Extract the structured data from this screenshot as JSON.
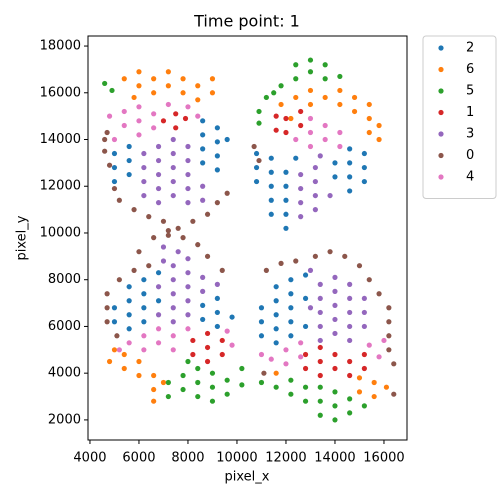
{
  "chart_data": {
    "type": "scatter",
    "title": "Time point: 1",
    "x_label": "pixel_x",
    "y_label": "pixel_y",
    "xlim": [
      3920,
      16940
    ],
    "ylim": [
      1140,
      18430
    ],
    "xticks": [
      4000,
      6000,
      8000,
      10000,
      12000,
      14000,
      16000
    ],
    "yticks": [
      2000,
      4000,
      6000,
      8000,
      10000,
      12000,
      14000,
      16000,
      18000
    ],
    "grid": false,
    "legend": "outside-upper-right",
    "series": [
      {
        "name": "2",
        "color": "#1f77b4",
        "x": [
          5000,
          5000,
          5000,
          5600,
          5600,
          5600,
          8600,
          8600,
          8600,
          8600,
          9200,
          9200,
          9200,
          9200,
          9600,
          10800,
          10800,
          10800,
          11400,
          11400,
          11400,
          11400,
          11400,
          12000,
          12000,
          12000,
          12000,
          12000,
          12400,
          14000,
          14000,
          14600,
          14600,
          14600,
          14600,
          15200,
          15200,
          15200,
          5000,
          5000,
          5600,
          5600,
          5600,
          5600,
          6200,
          6200,
          6200,
          6200,
          6800,
          6800,
          8600,
          8600,
          9200,
          9200,
          9200,
          9800,
          11000,
          11000,
          11000,
          11600,
          11600,
          11600,
          11600,
          11600,
          12200,
          12200,
          12200,
          12200,
          12200,
          12800,
          12800,
          12800
        ],
        "y": [
          12200,
          12800,
          13400,
          12500,
          13100,
          13700,
          13000,
          13600,
          14200,
          14800,
          12700,
          13300,
          13900,
          14500,
          14000,
          12200,
          12800,
          13400,
          10800,
          11400,
          12000,
          12600,
          13200,
          10200,
          10800,
          11400,
          12000,
          12600,
          13200,
          12400,
          13000,
          11800,
          12400,
          13000,
          13600,
          12200,
          12800,
          13400,
          6200,
          6800,
          5900,
          6500,
          7100,
          7700,
          6200,
          6800,
          7400,
          8000,
          7100,
          8300,
          6300,
          6900,
          6000,
          6600,
          7200,
          6400,
          5600,
          6200,
          6800,
          5300,
          5900,
          6500,
          7100,
          7700,
          5600,
          6200,
          6800,
          7400,
          8000,
          6000,
          7200,
          8200
        ]
      },
      {
        "name": "6",
        "color": "#ff7f0e",
        "x": [
          5400,
          6000,
          6000,
          6600,
          6600,
          7200,
          7200,
          7800,
          7800,
          8400,
          8400,
          9000,
          9000,
          5800,
          12400,
          13000,
          13000,
          13600,
          14200,
          14200,
          14800,
          14800,
          15400,
          15400,
          15400,
          15800,
          15800,
          12200,
          11800,
          4800,
          5400,
          5400,
          6000,
          6000,
          6600,
          6600,
          6600,
          7000,
          5000,
          15000,
          15000,
          15600,
          15600,
          16100,
          11600
        ],
        "y": [
          16600,
          16300,
          16900,
          16000,
          16600,
          16300,
          16900,
          16000,
          16600,
          16300,
          15700,
          16000,
          16600,
          15800,
          15800,
          15500,
          16100,
          15800,
          15500,
          16100,
          15200,
          15800,
          14900,
          15500,
          14300,
          14000,
          14600,
          14900,
          15500,
          4500,
          4200,
          4800,
          3900,
          4500,
          3300,
          3900,
          2800,
          3600,
          5000,
          3200,
          3800,
          3000,
          3600,
          3400,
          4000
        ]
      },
      {
        "name": "5",
        "color": "#2ca02c",
        "x": [
          4600,
          4900,
          11800,
          12400,
          13000,
          13000,
          12400,
          13600,
          13600,
          14200,
          11200,
          10900,
          10900,
          11500,
          7200,
          7200,
          7800,
          7800,
          8400,
          8400,
          8400,
          9000,
          9000,
          9000,
          9600,
          9600,
          10200,
          10200,
          8000,
          11600,
          12200,
          12200,
          12800,
          12800,
          13400,
          13400,
          13400,
          14000,
          14000,
          14000,
          14600,
          14600,
          15200,
          11000
        ],
        "y": [
          16400,
          16100,
          16300,
          16600,
          16900,
          17400,
          17200,
          17200,
          16600,
          16700,
          15800,
          15200,
          14700,
          16000,
          3000,
          3600,
          3300,
          3900,
          3000,
          3600,
          4200,
          2800,
          3400,
          4000,
          3100,
          3700,
          3500,
          4200,
          4500,
          3400,
          3100,
          3700,
          2800,
          3400,
          2200,
          2800,
          3400,
          2000,
          2600,
          3200,
          2300,
          2900,
          2600,
          3600
        ]
      },
      {
        "name": "1",
        "color": "#d62728",
        "x": [
          7000,
          7500,
          7500,
          7900,
          11600,
          12000,
          12000,
          12600,
          12600,
          11600,
          8200,
          8200,
          8800,
          8800,
          8800,
          9400,
          9400,
          12800,
          13400,
          13400,
          14000,
          14000,
          14600,
          14600,
          15200,
          15200,
          12800,
          13400
        ],
        "y": [
          14800,
          15100,
          14500,
          14900,
          14400,
          14900,
          14300,
          14600,
          15200,
          15000,
          4800,
          5400,
          4500,
          5100,
          5700,
          4800,
          5400,
          4200,
          3900,
          4500,
          4200,
          4800,
          3900,
          4500,
          4200,
          4800,
          4800,
          5100
        ]
      },
      {
        "name": "3",
        "color": "#9467bd",
        "x": [
          6200,
          6200,
          6200,
          6200,
          6800,
          6800,
          6800,
          6800,
          6800,
          7400,
          7400,
          7400,
          7400,
          7400,
          8000,
          8000,
          8000,
          8000,
          8000,
          8600,
          8600,
          12600,
          12600,
          12600,
          12600,
          13200,
          13200,
          13200,
          13200,
          13800,
          13400,
          6800,
          7000,
          7000,
          7400,
          7400,
          7400,
          7400,
          7400,
          7600,
          8000,
          8000,
          8000,
          8000,
          8000,
          8600,
          8600,
          6800,
          9200,
          13400,
          13400,
          13400,
          13400,
          13400,
          14000,
          14000,
          14000,
          14000,
          14000,
          14600,
          14600,
          14600,
          14600,
          14600,
          15200,
          15200,
          15200,
          13000,
          13000
        ],
        "y": [
          11600,
          12200,
          12800,
          13400,
          11300,
          11900,
          12500,
          13100,
          13700,
          11600,
          12200,
          12800,
          13400,
          14000,
          11300,
          11900,
          12500,
          13100,
          13700,
          12000,
          11400,
          10700,
          11300,
          11900,
          12500,
          11000,
          11600,
          12200,
          12800,
          11600,
          13300,
          7700,
          9400,
          8800,
          6200,
          6800,
          7400,
          8000,
          8600,
          9200,
          6500,
          7100,
          7700,
          8300,
          8900,
          7500,
          8100,
          6500,
          7800,
          5400,
          6000,
          6600,
          7200,
          7800,
          5700,
          6300,
          6900,
          7500,
          8100,
          5400,
          6000,
          6600,
          7200,
          7800,
          6000,
          6600,
          7200,
          8400,
          6800
        ]
      },
      {
        "name": "0",
        "color": "#8c564b",
        "x": [
          4600,
          4600,
          4800,
          5000,
          5200,
          5800,
          6400,
          7000,
          7600,
          7200,
          8200,
          8800,
          9200,
          9600,
          4700,
          10700,
          10900,
          6600,
          7200,
          7800,
          8400,
          6000,
          6400,
          5800,
          5200,
          4700,
          4700,
          4700,
          5100,
          8800,
          9400,
          13200,
          13800,
          14400,
          15000,
          15400,
          15800,
          16200,
          16200,
          16200,
          16200,
          16400,
          11200,
          11800,
          12400,
          16400,
          11100
        ],
        "y": [
          13500,
          14000,
          12900,
          11900,
          11400,
          11000,
          10700,
          10500,
          10200,
          9900,
          10500,
          10800,
          11300,
          11700,
          14300,
          13700,
          13100,
          9800,
          10100,
          9800,
          9500,
          9200,
          8600,
          8400,
          8000,
          7400,
          6800,
          6200,
          5600,
          9000,
          8400,
          9000,
          9200,
          9000,
          8600,
          8000,
          7400,
          6800,
          6200,
          5600,
          5000,
          4400,
          8400,
          8700,
          8800,
          3100,
          4000
        ]
      },
      {
        "name": "4",
        "color": "#e377c2",
        "x": [
          4800,
          5400,
          5400,
          6000,
          6000,
          6000,
          6600,
          6600,
          7200,
          8000,
          8400,
          5000,
          12400,
          13000,
          13000,
          13600,
          13600,
          14200,
          14200,
          13000,
          5600,
          6200,
          6200,
          6800,
          6800,
          7400,
          7400,
          8000,
          5200,
          9600,
          9800,
          11400,
          12000,
          12000,
          12600,
          12600,
          15400,
          15800,
          16000,
          11000
        ],
        "y": [
          15000,
          15200,
          14600,
          15400,
          14800,
          14200,
          15100,
          14500,
          15500,
          15400,
          15000,
          14000,
          14000,
          14300,
          13700,
          14000,
          14600,
          14300,
          13700,
          14900,
          5300,
          5000,
          5600,
          5300,
          5900,
          5000,
          5600,
          5900,
          5000,
          5800,
          5200,
          4600,
          4400,
          5000,
          4700,
          5300,
          5200,
          4700,
          5400,
          4800
        ]
      }
    ]
  }
}
